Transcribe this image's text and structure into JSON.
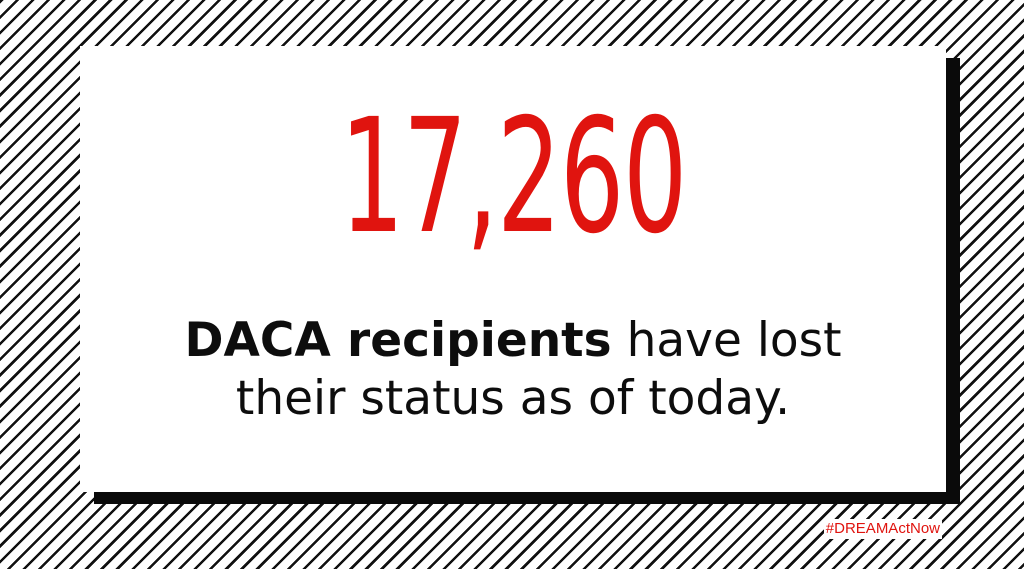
{
  "graphic": {
    "number": "17,260",
    "message_bold": "DACA recipients",
    "message_rest_line1": " have lost",
    "message_line2": "their status as of today.",
    "hashtag": "#DREAMActNow"
  },
  "colors": {
    "accent_red": "#e0140f",
    "text_black": "#0d0d0d",
    "stripe_black": "#111111",
    "card_white": "#ffffff"
  }
}
